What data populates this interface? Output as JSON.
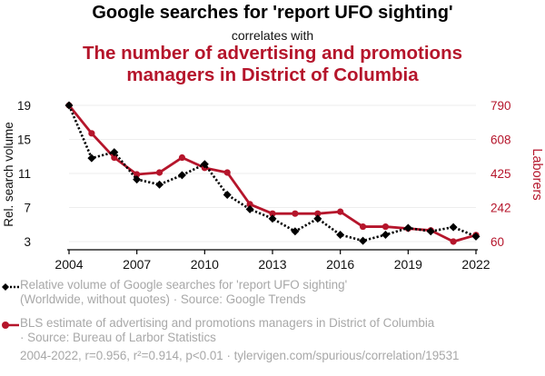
{
  "header": {
    "title": "Google searches for 'report UFO sighting'",
    "subtitle": "correlates with",
    "title2_line1": "The number of advertising and promotions",
    "title2_line2": "managers in District of Columbia"
  },
  "legend": {
    "item1_line1": "Relative volume of Google searches for 'report UFO sighting'",
    "item1_line2": "(Worldwide, without quotes) · Source: Google Trends",
    "item2_line1": "BLS estimate of advertising and promotions managers in District of Columbia",
    "item2_line2": "· Source: Bureau of Larbor Statistics"
  },
  "footer": {
    "text": "2004-2022, r=0.956, r²=0.914, p<0.01 · tylervigen.com/spurious/correlation/19531"
  },
  "chart_data": {
    "type": "line",
    "x": [
      2004,
      2005,
      2006,
      2007,
      2008,
      2009,
      2010,
      2011,
      2012,
      2013,
      2014,
      2015,
      2016,
      2017,
      2018,
      2019,
      2020,
      2021,
      2022
    ],
    "xticks": [
      2004,
      2007,
      2010,
      2013,
      2016,
      2019,
      2022
    ],
    "ylabel_left": "Rel. search volume",
    "ylabel_right": "Laborers",
    "yticks_left": [
      3,
      7,
      11,
      15,
      19
    ],
    "yticks_right": [
      60,
      242,
      425,
      608,
      790
    ],
    "ylim_left": [
      3,
      19
    ],
    "ylim_right": [
      60,
      790
    ],
    "series": [
      {
        "name": "Relative volume of Google searches for 'report UFO sighting'",
        "axis": "left",
        "color": "#000000",
        "style": "dotted",
        "marker": "diamond",
        "values": [
          19,
          12.8,
          13.5,
          10.3,
          9.7,
          10.8,
          12.1,
          8.5,
          6.8,
          5.7,
          4.2,
          5.7,
          3.8,
          3.1,
          3.8,
          4.6,
          4.2,
          4.7,
          3.6
        ]
      },
      {
        "name": "BLS estimate of advertising and promotions managers in District of Columbia",
        "axis": "right",
        "color": "#b5152b",
        "style": "solid",
        "marker": "circle",
        "values": [
          790,
          640,
          510,
          420,
          430,
          510,
          455,
          430,
          260,
          210,
          210,
          210,
          220,
          140,
          140,
          130,
          120,
          60,
          95
        ]
      }
    ],
    "grid": true,
    "legend_position": "bottom"
  }
}
